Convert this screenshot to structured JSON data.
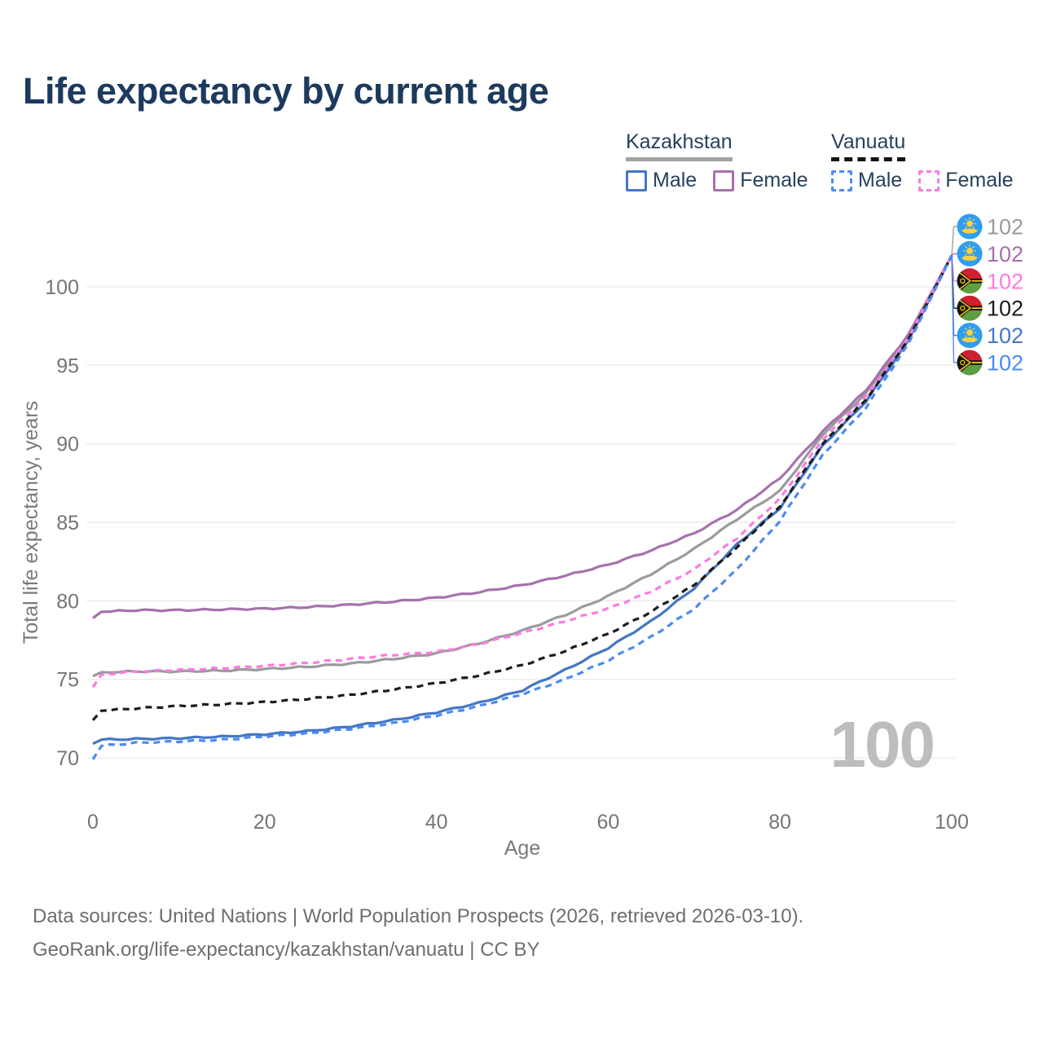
{
  "page": {
    "title": "Life expectancy by current age"
  },
  "legend": {
    "kazakhstan": {
      "label": "Kazakhstan",
      "male": "Male",
      "female": "Female"
    },
    "vanuatu": {
      "label": "Vanuatu",
      "male": "Male",
      "female": "Female"
    }
  },
  "colors": {
    "kz_all": "#9b9b9b",
    "kz_female": "#a771ad",
    "kz_male": "#4477c4",
    "vu_all": "#1c1c1c",
    "vu_female": "#fb7be1",
    "vu_male": "#4b8bf2",
    "grid": "#ededed",
    "title_text": "#1c3a5e",
    "legend_text": "#26415e",
    "tick_text": "#757575",
    "watermark_text": "#bdbdbd",
    "footer_text": "#6e6e6e",
    "kz_flag_blue": "#2e9df2",
    "kz_flag_yellow": "#ffd23f",
    "vu_flag_red": "#d01f2e",
    "vu_flag_green": "#5f9e42",
    "vu_flag_yellow": "#fdce12"
  },
  "chart_data": {
    "type": "line",
    "title": "Life expectancy by current age",
    "xlabel": "Age",
    "ylabel": "Total life expectancy, years",
    "x_ticks": [
      0,
      20,
      40,
      60,
      80,
      100
    ],
    "y_ticks": [
      70,
      75,
      80,
      85,
      90,
      95,
      100
    ],
    "xlim": [
      0,
      100
    ],
    "ylim": [
      68.5,
      103.5
    ],
    "grid": "horizontal-only",
    "legend_position": "top-right",
    "watermark_age": "100",
    "ages": [
      0,
      1,
      5,
      10,
      15,
      20,
      25,
      30,
      35,
      40,
      45,
      50,
      55,
      60,
      65,
      70,
      75,
      80,
      85,
      90,
      95,
      100
    ],
    "series": [
      {
        "id": "kz_all",
        "country": "Kazakhstan",
        "group": "All",
        "color": "#9b9b9b",
        "dashed": false,
        "flag": "kz",
        "end_label": "102",
        "end_value": 102,
        "values": [
          75.2,
          75.45,
          75.5,
          75.5,
          75.55,
          75.65,
          75.8,
          76.0,
          76.3,
          76.65,
          77.3,
          78.1,
          79.1,
          80.3,
          81.7,
          83.3,
          85.2,
          87.0,
          90.6,
          93.2,
          96.9,
          102
        ]
      },
      {
        "id": "kz_female",
        "country": "Kazakhstan",
        "group": "Female",
        "color": "#a771ad",
        "dashed": false,
        "flag": "kz",
        "end_label": "102",
        "end_value": 102,
        "values": [
          78.9,
          79.3,
          79.4,
          79.4,
          79.45,
          79.5,
          79.6,
          79.75,
          79.95,
          80.2,
          80.55,
          81.0,
          81.6,
          82.3,
          83.2,
          84.3,
          85.8,
          87.8,
          90.8,
          93.4,
          97.0,
          102
        ]
      },
      {
        "id": "vu_female",
        "country": "Vanuatu",
        "group": "Female",
        "color": "#fb7be1",
        "dashed": true,
        "flag": "vu",
        "end_label": "102",
        "end_value": 102,
        "values": [
          74.5,
          75.3,
          75.5,
          75.6,
          75.7,
          75.85,
          76.05,
          76.3,
          76.55,
          76.75,
          77.25,
          77.95,
          78.7,
          79.5,
          80.6,
          82.0,
          84.0,
          86.5,
          90.3,
          93.0,
          96.8,
          102
        ]
      },
      {
        "id": "vu_all",
        "country": "Vanuatu",
        "group": "All",
        "color": "#1c1c1c",
        "dashed": true,
        "flag": "vu",
        "end_label": "102",
        "end_value": 102,
        "values": [
          72.4,
          73.0,
          73.15,
          73.3,
          73.4,
          73.55,
          73.75,
          74.0,
          74.35,
          74.75,
          75.25,
          75.9,
          76.8,
          77.9,
          79.3,
          81.0,
          83.4,
          86.0,
          90.0,
          92.8,
          96.7,
          102
        ]
      },
      {
        "id": "kz_male",
        "country": "Kazakhstan",
        "group": "Male",
        "color": "#4477c4",
        "dashed": false,
        "flag": "kz",
        "end_label": "102",
        "end_value": 102,
        "values": [
          70.9,
          71.15,
          71.2,
          71.25,
          71.35,
          71.5,
          71.7,
          72.0,
          72.4,
          72.9,
          73.5,
          74.3,
          75.6,
          77.0,
          78.7,
          80.8,
          83.6,
          85.9,
          89.9,
          92.7,
          96.6,
          102
        ]
      },
      {
        "id": "vu_male",
        "country": "Vanuatu",
        "group": "Male",
        "color": "#4b8bf2",
        "dashed": true,
        "flag": "vu",
        "end_label": "102",
        "end_value": 102,
        "values": [
          69.9,
          70.75,
          70.95,
          71.05,
          71.15,
          71.35,
          71.55,
          71.85,
          72.2,
          72.7,
          73.3,
          74.05,
          75.0,
          76.2,
          77.7,
          79.5,
          82.0,
          85.1,
          89.3,
          92.3,
          96.4,
          102
        ]
      }
    ]
  },
  "footer": {
    "line1": "Data sources: United Nations | World Population Prospects (2026, retrieved 2026-03-10).",
    "line2": "GeoRank.org/life-expectancy/kazakhstan/vanuatu | CC BY"
  }
}
